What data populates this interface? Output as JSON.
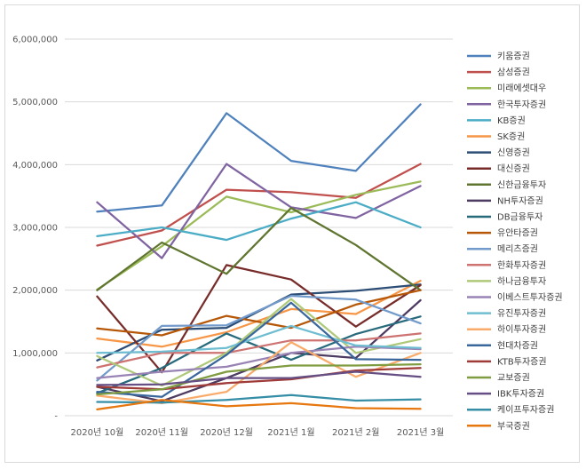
{
  "chart_data": {
    "type": "line",
    "title": "",
    "xlabel": "",
    "ylabel": "",
    "categories": [
      "2020년 10월",
      "2020년 11월",
      "2020년 12월",
      "2021년 1월",
      "2021년 2월",
      "2021년 3월"
    ],
    "ylim": [
      0,
      6000000
    ],
    "yticks": [
      0,
      1000000,
      2000000,
      3000000,
      4000000,
      5000000,
      6000000
    ],
    "ytick_labels": [
      "-",
      "1,000,000",
      "2,000,000",
      "3,000,000",
      "4,000,000",
      "5,000,000",
      "6,000,000"
    ],
    "grid": true,
    "legend_position": "right",
    "series": [
      {
        "name": "키움증권",
        "color": "#4f81bd",
        "values": [
          3250000,
          3350000,
          4820000,
          4060000,
          3900000,
          4960000
        ]
      },
      {
        "name": "삼성증권",
        "color": "#c0504d",
        "values": [
          2710000,
          2950000,
          3600000,
          3560000,
          3470000,
          4010000
        ]
      },
      {
        "name": "미래에셋대우",
        "color": "#9bbb59",
        "values": [
          2010000,
          2700000,
          3490000,
          3240000,
          3520000,
          3730000
        ]
      },
      {
        "name": "한국투자증권",
        "color": "#8064a2",
        "values": [
          3400000,
          2510000,
          4010000,
          3320000,
          3150000,
          3660000
        ]
      },
      {
        "name": "KB증권",
        "color": "#4bacc6",
        "values": [
          2860000,
          3000000,
          2800000,
          3140000,
          3400000,
          3000000
        ]
      },
      {
        "name": "SK증권",
        "color": "#f79646",
        "values": [
          1230000,
          1100000,
          1330000,
          1700000,
          1620000,
          2150000
        ]
      },
      {
        "name": "신영증권",
        "color": "#2c4d75",
        "values": [
          880000,
          1370000,
          1400000,
          1930000,
          1990000,
          2090000
        ]
      },
      {
        "name": "대신증권",
        "color": "#772c2a",
        "values": [
          1900000,
          690000,
          2400000,
          2170000,
          1420000,
          2080000
        ]
      },
      {
        "name": "신한금융투자",
        "color": "#5f7530",
        "values": [
          2000000,
          2760000,
          2260000,
          3310000,
          2720000,
          2000000
        ]
      },
      {
        "name": "NH투자증권",
        "color": "#4d3b62",
        "values": [
          460000,
          230000,
          600000,
          1000000,
          920000,
          1840000
        ]
      },
      {
        "name": "DB금융투자",
        "color": "#276a7c",
        "values": [
          360000,
          760000,
          1310000,
          890000,
          1300000,
          1580000
        ]
      },
      {
        "name": "유안타증권",
        "color": "#b65708",
        "values": [
          1390000,
          1280000,
          1590000,
          1400000,
          1770000,
          2000000
        ]
      },
      {
        "name": "메리츠증권",
        "color": "#729aca",
        "values": [
          560000,
          1430000,
          1440000,
          1910000,
          1850000,
          1470000
        ]
      },
      {
        "name": "한화투자증권",
        "color": "#cd7371",
        "values": [
          770000,
          1000000,
          1000000,
          1200000,
          1200000,
          1310000
        ]
      },
      {
        "name": "하나금융투자",
        "color": "#afc97a",
        "values": [
          950000,
          480000,
          1000000,
          1860000,
          1000000,
          1220000
        ]
      },
      {
        "name": "이베스트투자증권",
        "color": "#9983b5",
        "values": [
          600000,
          700000,
          780000,
          1000000,
          1100000,
          1060000
        ]
      },
      {
        "name": "유진투자증권",
        "color": "#6fbdd1",
        "values": [
          1000000,
          1020000,
          1080000,
          1430000,
          1120000,
          1080000
        ]
      },
      {
        "name": "하이투자증권",
        "color": "#f9ab6b",
        "values": [
          320000,
          200000,
          380000,
          1170000,
          620000,
          1000000
        ]
      },
      {
        "name": "현대차증권",
        "color": "#3a679c",
        "values": [
          380000,
          300000,
          970000,
          1800000,
          900000,
          890000
        ]
      },
      {
        "name": "KTB투자증권",
        "color": "#9f3b38",
        "values": [
          460000,
          420000,
          520000,
          580000,
          720000,
          760000
        ]
      },
      {
        "name": "교보증권",
        "color": "#7f9c40",
        "values": [
          340000,
          420000,
          700000,
          800000,
          800000,
          820000
        ]
      },
      {
        "name": "IBK투자증권",
        "color": "#664f84",
        "values": [
          490000,
          500000,
          600000,
          600000,
          700000,
          620000
        ]
      },
      {
        "name": "케이프투자증권",
        "color": "#358ea6",
        "values": [
          220000,
          210000,
          250000,
          330000,
          240000,
          260000
        ]
      },
      {
        "name": "부국증권",
        "color": "#e7770f",
        "values": [
          100000,
          250000,
          150000,
          200000,
          120000,
          110000
        ]
      }
    ]
  }
}
